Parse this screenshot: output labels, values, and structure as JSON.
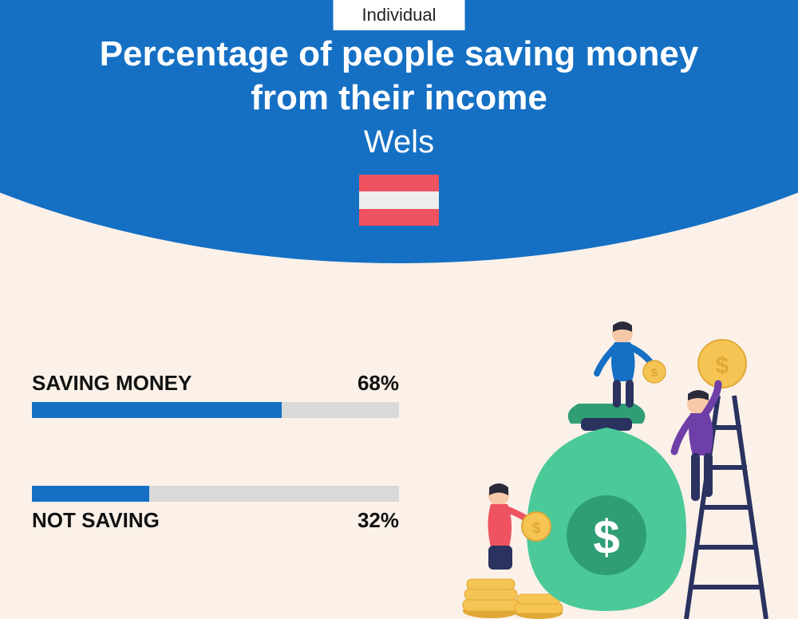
{
  "colors": {
    "header_bg": "#1570c4",
    "page_bg": "#fbf1e9",
    "badge_bg": "#ffffff",
    "text_dark": "#111111",
    "text_light": "#ffffff",
    "bar_fill": "#1570c4",
    "bar_track": "#d9d9d9",
    "flag_red": "#ef5261",
    "flag_white": "#eeeeee"
  },
  "badge": "Individual",
  "title": "Percentage of people saving money from their income",
  "subtitle": "Wels",
  "bars": [
    {
      "label": "SAVING MONEY",
      "value": 68,
      "display": "68%",
      "label_position": "above"
    },
    {
      "label": "NOT SAVING",
      "value": 32,
      "display": "32%",
      "label_position": "below"
    }
  ],
  "illustration": {
    "bag_color": "#4bc999",
    "bag_dark": "#2f9e75",
    "coin_color": "#f5c452",
    "coin_dark": "#e0a836",
    "ladder_color": "#2a3260",
    "person1_shirt": "#1570c4",
    "person1_pants": "#2a3260",
    "person2_shirt": "#6f3fa8",
    "person2_pants": "#2a3260",
    "person3_shirt": "#ef5261",
    "skin": "#f7c9a8",
    "hair": "#2a2a3a"
  }
}
